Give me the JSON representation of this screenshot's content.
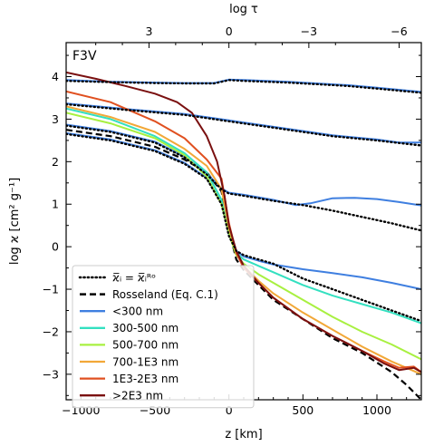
{
  "chart_data": {
    "type": "line",
    "title": "",
    "panel_label": "F3V",
    "xlabel": "z [km]",
    "ylabel": "log ϰ [cm² g⁻¹]",
    "top_axis_label": "log τ",
    "xlim": [
      -1100,
      1300
    ],
    "ylim": [
      -3.6,
      4.8
    ],
    "x_ticks": [
      -1000,
      -500,
      0,
      500,
      1000
    ],
    "x_tick_labels": [
      "−1000",
      "−500",
      "0",
      "500",
      "1000"
    ],
    "y_ticks": [
      -3,
      -2,
      -1,
      0,
      1,
      2,
      3,
      4
    ],
    "y_tick_labels": [
      "−3",
      "−2",
      "−1",
      "0",
      "1",
      "2",
      "3",
      "4"
    ],
    "top_ticks_z": [
      -540,
      0,
      540,
      1150
    ],
    "top_tick_labels": [
      "3",
      "0",
      "−3",
      "−6"
    ],
    "legend_position": "lower-left",
    "series": [
      {
        "name": "ϰ̅ᵢ = ϰ̅ᵢᴿᵒ",
        "color": "#000000",
        "style": "dotted",
        "width": 2.2,
        "segments": [
          {
            "x": [
              -1100,
              -800,
              -500,
              -300,
              -100,
              0,
              100,
              400,
              800,
              1000,
              1300
            ],
            "y": [
              3.9,
              3.87,
              3.85,
              3.84,
              3.84,
              3.92,
              3.9,
              3.86,
              3.78,
              3.72,
              3.62
            ]
          },
          {
            "x": [
              -1100,
              -700,
              -300,
              0,
              300,
              700,
              1000,
              1300
            ],
            "y": [
              3.35,
              3.22,
              3.1,
              2.95,
              2.8,
              2.6,
              2.5,
              2.38
            ]
          },
          {
            "x": [
              -1100,
              -800,
              -500,
              -300,
              -150,
              -50,
              0,
              100,
              300,
              500,
              700,
              900,
              1100,
              1300
            ],
            "y": [
              2.85,
              2.7,
              2.45,
              2.1,
              1.7,
              1.35,
              1.25,
              1.2,
              1.08,
              0.98,
              0.85,
              0.7,
              0.55,
              0.38
            ]
          },
          {
            "x": [
              -1100,
              -800,
              -500,
              -300,
              -150,
              -50,
              0,
              50,
              100,
              200,
              300,
              500,
              700,
              900,
              1100,
              1300
            ],
            "y": [
              2.65,
              2.5,
              2.25,
              1.95,
              1.6,
              1.0,
              0.25,
              -0.1,
              -0.2,
              -0.3,
              -0.4,
              -0.75,
              -1.0,
              -1.25,
              -1.5,
              -1.75
            ]
          }
        ]
      },
      {
        "name": "Rosseland (Eq. C.1)",
        "color": "#000000",
        "style": "dashed",
        "width": 2.2,
        "segments": [
          {
            "x": [
              -1100,
              -800,
              -500,
              -300,
              -150,
              -50,
              0,
              50,
              100,
              200,
              300,
              500,
              700,
              900,
              1100,
              1200,
              1300
            ],
            "y": [
              2.75,
              2.6,
              2.35,
              2.05,
              1.75,
              1.3,
              0.4,
              -0.3,
              -0.55,
              -0.9,
              -1.25,
              -1.7,
              -2.15,
              -2.5,
              -2.95,
              -3.25,
              -3.6
            ]
          }
        ]
      },
      {
        "name": "<300 nm",
        "color": "#3f7fe0",
        "style": "solid",
        "width": 2,
        "segments": [
          {
            "x": [
              -1100,
              -800,
              -500,
              -300,
              -100,
              0,
              100,
              400,
              800,
              1000,
              1300
            ],
            "y": [
              3.92,
              3.88,
              3.86,
              3.85,
              3.85,
              3.93,
              3.92,
              3.88,
              3.8,
              3.74,
              3.64
            ]
          },
          {
            "x": [
              -1100,
              -700,
              -300,
              0,
              300,
              700,
              1000,
              1150,
              1300
            ],
            "y": [
              3.37,
              3.24,
              3.12,
              2.97,
              2.82,
              2.62,
              2.52,
              2.45,
              2.45
            ]
          },
          {
            "x": [
              -1100,
              -800,
              -500,
              -300,
              -150,
              -50,
              0,
              100,
              300,
              450,
              550,
              700,
              850,
              1000,
              1150,
              1300
            ],
            "y": [
              2.87,
              2.72,
              2.47,
              2.12,
              1.72,
              1.37,
              1.27,
              1.22,
              1.1,
              0.98,
              1.02,
              1.14,
              1.15,
              1.12,
              1.05,
              0.97
            ]
          },
          {
            "x": [
              -1100,
              -800,
              -500,
              -300,
              -150,
              -50,
              0,
              50,
              100,
              200,
              300,
              500,
              700,
              900,
              1100,
              1300
            ],
            "y": [
              2.67,
              2.52,
              2.27,
              1.97,
              1.62,
              1.02,
              0.27,
              -0.1,
              -0.23,
              -0.33,
              -0.42,
              -0.53,
              -0.62,
              -0.72,
              -0.85,
              -1.0
            ]
          }
        ]
      },
      {
        "name": "300-500 nm",
        "color": "#33e0c0",
        "style": "solid",
        "width": 2,
        "segments": [
          {
            "x": [
              -1100,
              -800,
              -500,
              -300,
              -150,
              -50,
              0,
              50,
              100,
              200,
              300,
              500,
              700,
              900,
              1100,
              1300
            ],
            "y": [
              3.25,
              3.0,
              2.6,
              2.2,
              1.75,
              1.1,
              0.35,
              -0.15,
              -0.3,
              -0.45,
              -0.6,
              -0.9,
              -1.15,
              -1.35,
              -1.55,
              -1.8
            ]
          }
        ]
      },
      {
        "name": "500-700 nm",
        "color": "#a8f040",
        "style": "solid",
        "width": 2,
        "segments": [
          {
            "x": [
              -1100,
              -800,
              -500,
              -300,
              -150,
              -50,
              0,
              50,
              100,
              200,
              300,
              500,
              700,
              900,
              1100,
              1300
            ],
            "y": [
              3.15,
              2.9,
              2.55,
              2.15,
              1.65,
              1.0,
              0.3,
              -0.2,
              -0.4,
              -0.65,
              -0.85,
              -1.25,
              -1.65,
              -2.0,
              -2.3,
              -2.65
            ]
          }
        ]
      },
      {
        "name": "700-1E3 nm",
        "color": "#f2a838",
        "style": "solid",
        "width": 2,
        "segments": [
          {
            "x": [
              -1100,
              -800,
              -500,
              -300,
              -150,
              -50,
              0,
              50,
              100,
              200,
              300,
              500,
              700,
              900,
              1100,
              1200,
              1300
            ],
            "y": [
              3.3,
              3.05,
              2.7,
              2.3,
              1.9,
              1.35,
              0.45,
              -0.15,
              -0.45,
              -0.8,
              -1.1,
              -1.55,
              -1.95,
              -2.35,
              -2.7,
              -2.85,
              -3.0
            ]
          }
        ]
      },
      {
        "name": "1E3-2E3 nm",
        "color": "#e05020",
        "style": "solid",
        "width": 2,
        "segments": [
          {
            "x": [
              -1100,
              -800,
              -500,
              -300,
              -150,
              -50,
              0,
              50,
              100,
              200,
              300,
              500,
              700,
              900,
              1050,
              1150,
              1250,
              1300
            ],
            "y": [
              3.65,
              3.4,
              2.95,
              2.55,
              2.05,
              1.6,
              0.55,
              -0.15,
              -0.5,
              -0.85,
              -1.2,
              -1.7,
              -2.1,
              -2.45,
              -2.7,
              -2.85,
              -2.82,
              -2.95
            ]
          }
        ]
      },
      {
        "name": ">2E3 nm",
        "color": "#7a1010",
        "style": "solid",
        "width": 2,
        "segments": [
          {
            "x": [
              -1100,
              -900,
              -700,
              -500,
              -350,
              -250,
              -150,
              -80,
              -30,
              0,
              50,
              100,
              200,
              300,
              500,
              700,
              900,
              1050,
              1150,
              1250,
              1300
            ],
            "y": [
              4.1,
              3.95,
              3.78,
              3.6,
              3.4,
              3.15,
              2.6,
              2.0,
              1.2,
              0.5,
              -0.1,
              -0.45,
              -0.85,
              -1.2,
              -1.7,
              -2.1,
              -2.45,
              -2.75,
              -2.9,
              -2.85,
              -2.95
            ]
          }
        ]
      }
    ]
  }
}
